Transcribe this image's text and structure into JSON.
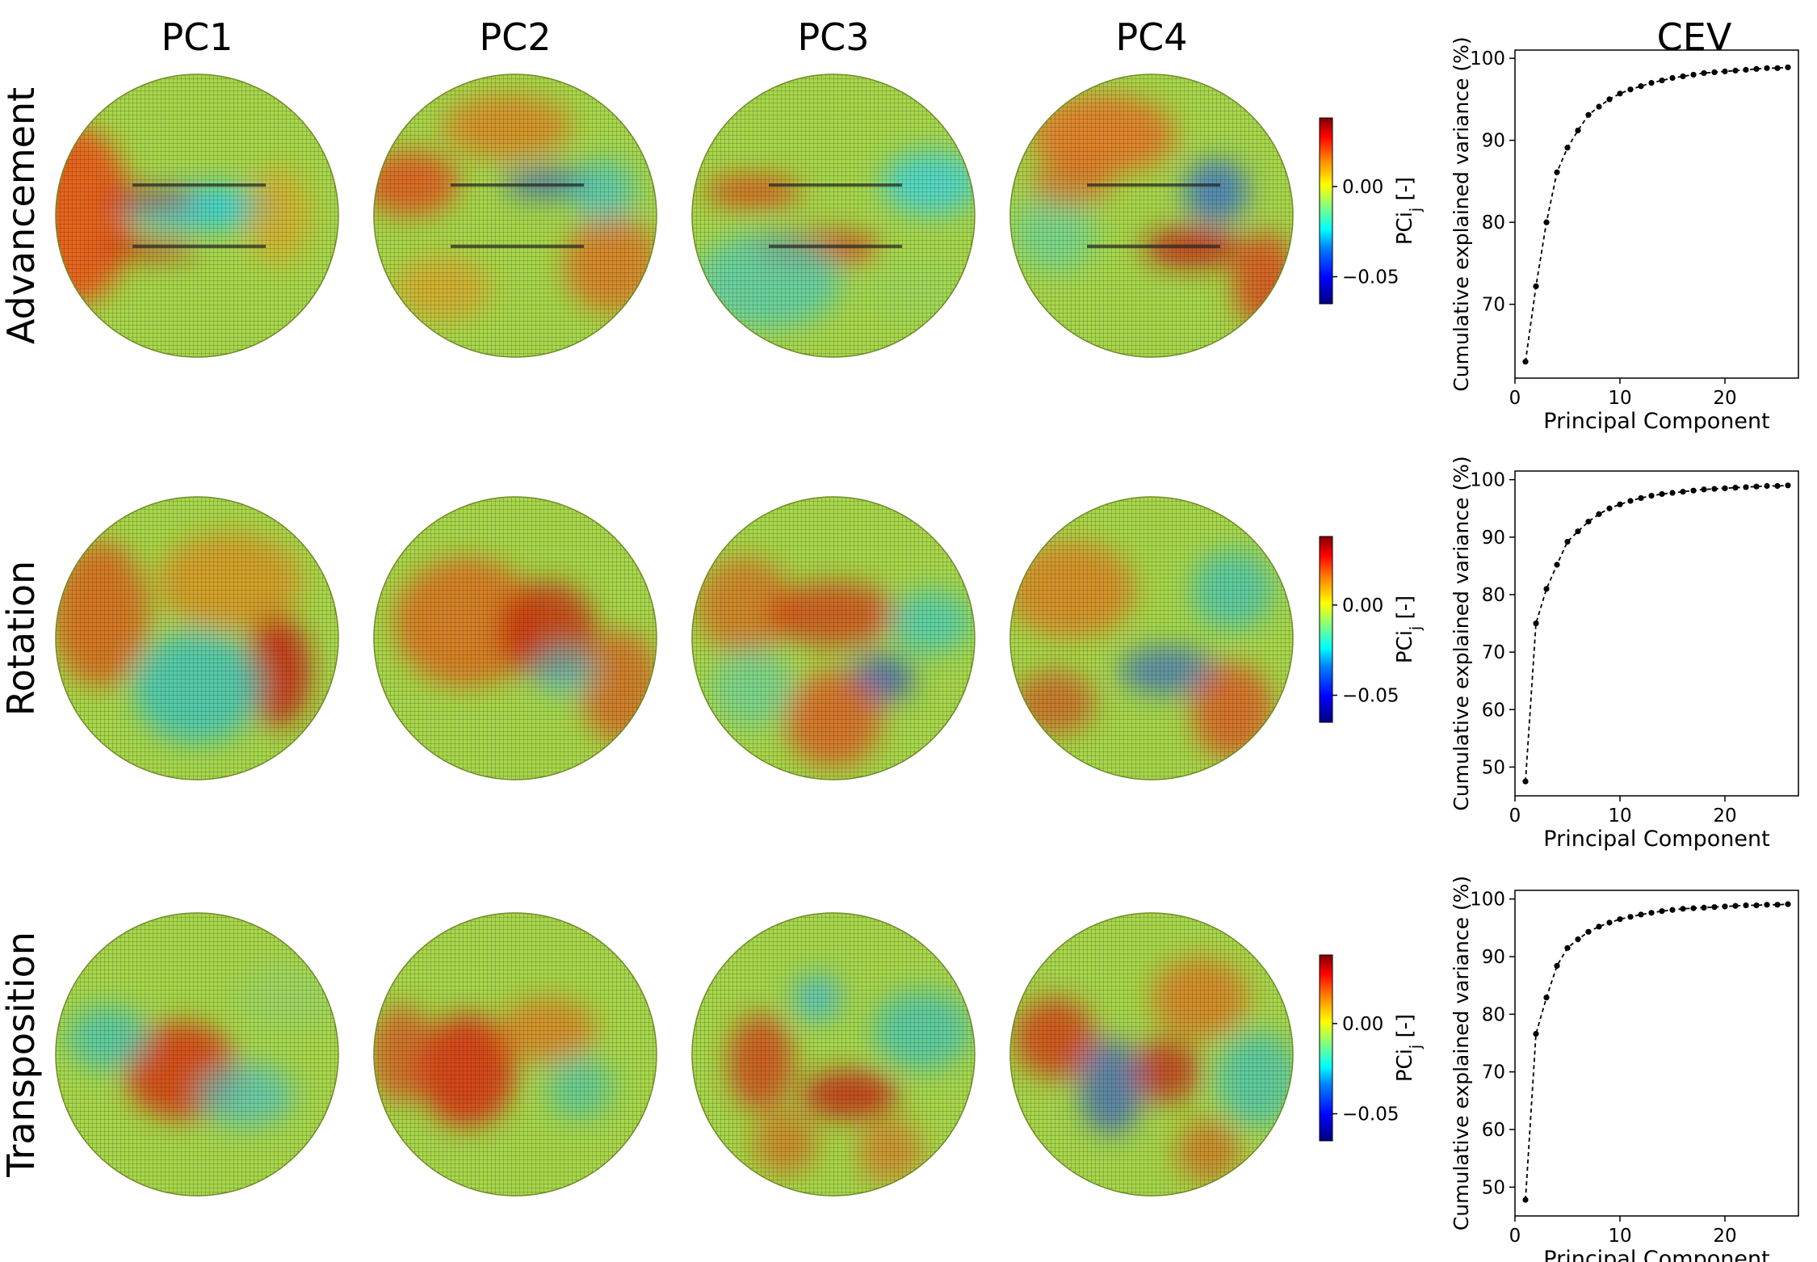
{
  "columns": [
    "PC1",
    "PC2",
    "PC3",
    "PC4",
    "CEV"
  ],
  "rows": [
    "Advancement",
    "Rotation",
    "Transposition"
  ],
  "colorbar": {
    "label": "PCi$_j$ [-]",
    "label_text": "PCi",
    "label_sub": "j",
    "label_suffix": " [-]",
    "ticks": [
      "0.00",
      "−0.05"
    ],
    "tick_values": [
      0.0,
      -0.05
    ],
    "range": [
      -0.065,
      0.038
    ],
    "colormap": [
      "#00007f",
      "#0000ff",
      "#0080ff",
      "#00ffff",
      "#80ff80",
      "#ffff00",
      "#ff8000",
      "#ff0000",
      "#7f0000"
    ]
  },
  "chart_data": [
    {
      "type": "line",
      "title": "Advancement",
      "xlabel": "Principal Component",
      "ylabel": "Cumulative explained variance (%)",
      "xlim": [
        0,
        27
      ],
      "ylim": [
        61,
        101
      ],
      "xticks": [
        0,
        10,
        20
      ],
      "yticks": [
        70,
        80,
        90,
        100
      ],
      "x": [
        1,
        2,
        3,
        4,
        5,
        6,
        7,
        8,
        9,
        10,
        11,
        12,
        13,
        14,
        15,
        16,
        17,
        18,
        19,
        20,
        21,
        22,
        23,
        24,
        25,
        26
      ],
      "values": [
        63.0,
        72.2,
        80.0,
        86.1,
        89.1,
        91.2,
        93.1,
        94.1,
        95.0,
        95.7,
        96.2,
        96.6,
        97.0,
        97.3,
        97.6,
        97.8,
        98.0,
        98.2,
        98.3,
        98.4,
        98.5,
        98.6,
        98.7,
        98.8,
        98.8,
        98.9
      ]
    },
    {
      "type": "line",
      "title": "Rotation",
      "xlabel": "Principal Component",
      "ylabel": "Cumulative explained variance (%)",
      "xlim": [
        0,
        27
      ],
      "ylim": [
        45,
        101.5
      ],
      "xticks": [
        0,
        10,
        20
      ],
      "yticks": [
        50,
        60,
        70,
        80,
        90,
        100
      ],
      "x": [
        1,
        2,
        3,
        4,
        5,
        6,
        7,
        8,
        9,
        10,
        11,
        12,
        13,
        14,
        15,
        16,
        17,
        18,
        19,
        20,
        21,
        22,
        23,
        24,
        25,
        26
      ],
      "values": [
        47.5,
        75.0,
        81.0,
        85.2,
        89.2,
        91.0,
        92.7,
        94.0,
        95.0,
        95.7,
        96.3,
        96.8,
        97.2,
        97.5,
        97.7,
        97.9,
        98.1,
        98.3,
        98.4,
        98.5,
        98.6,
        98.7,
        98.8,
        98.9,
        98.9,
        99.0
      ]
    },
    {
      "type": "line",
      "title": "Transposition",
      "xlabel": "Principal Component",
      "ylabel": "Cumulative explained variance (%)",
      "xlim": [
        0,
        27
      ],
      "ylim": [
        45,
        101.5
      ],
      "xticks": [
        0,
        10,
        20
      ],
      "yticks": [
        50,
        60,
        70,
        80,
        90,
        100
      ],
      "x": [
        1,
        2,
        3,
        4,
        5,
        6,
        7,
        8,
        9,
        10,
        11,
        12,
        13,
        14,
        15,
        16,
        17,
        18,
        19,
        20,
        21,
        22,
        23,
        24,
        25,
        26
      ],
      "values": [
        47.8,
        76.6,
        82.9,
        88.4,
        91.5,
        93.0,
        94.3,
        95.2,
        95.9,
        96.5,
        96.9,
        97.3,
        97.6,
        97.9,
        98.1,
        98.3,
        98.4,
        98.5,
        98.6,
        98.7,
        98.8,
        98.9,
        98.9,
        99.0,
        99.0,
        99.1
      ]
    }
  ]
}
